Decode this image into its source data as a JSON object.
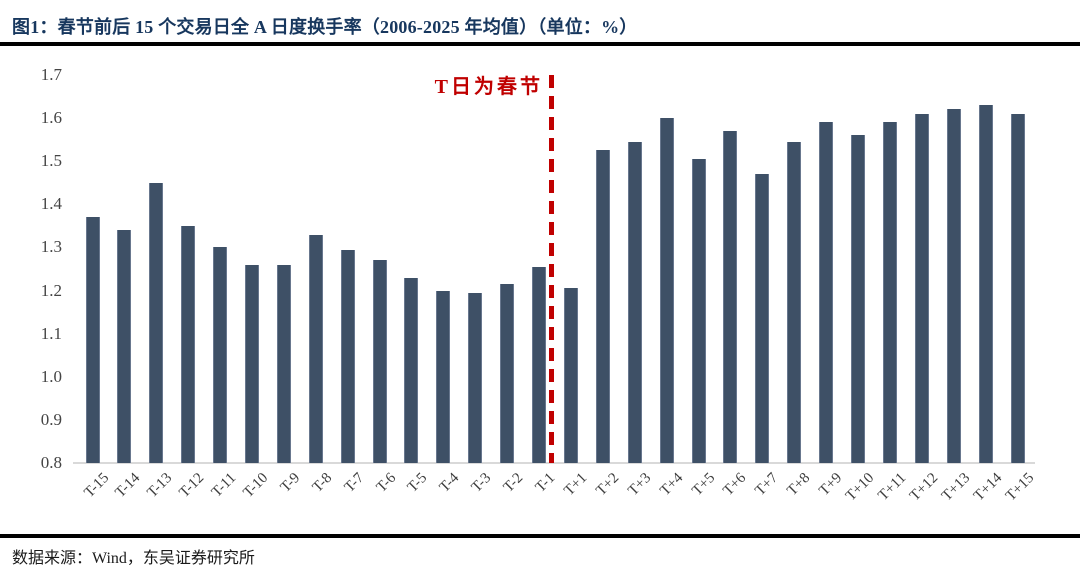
{
  "figure": {
    "title": "图1：春节前后 15 个交易日全 A 日度换手率（2006-2025 年均值）（单位：%）",
    "source": "数据来源：Wind，东吴证券研究所"
  },
  "colors": {
    "bar": "#3E5066",
    "title_navy": "#17375E",
    "annotation_red": "#C00000",
    "axis_line_gray": "#D9D9D9",
    "rule_black": "#000000"
  },
  "chart_data": {
    "type": "bar",
    "title": "春节前后15个交易日全A日度换手率（2006-2025年均值）",
    "unit": "%",
    "xlabel": "",
    "ylabel": "",
    "ylim": [
      0.8,
      1.7
    ],
    "ytick_step": 0.1,
    "yticks": [
      "1.7",
      "1.6",
      "1.5",
      "1.4",
      "1.3",
      "1.2",
      "1.1",
      "1.0",
      "0.9",
      "0.8"
    ],
    "grid": "off",
    "legend": "none",
    "annotation": "T日为春节",
    "annotation_line_between": [
      "T-1",
      "T+1"
    ],
    "categories": [
      "T-15",
      "T-14",
      "T-13",
      "T-12",
      "T-11",
      "T-10",
      "T-9",
      "T-8",
      "T-7",
      "T-6",
      "T-5",
      "T-4",
      "T-3",
      "T-2",
      "T-1",
      "T+1",
      "T+2",
      "T+3",
      "T+4",
      "T+5",
      "T+6",
      "T+7",
      "T+8",
      "T+9",
      "T+10",
      "T+11",
      "T+12",
      "T+13",
      "T+14",
      "T+15"
    ],
    "values": [
      1.37,
      1.34,
      1.45,
      1.35,
      1.3,
      1.26,
      1.26,
      1.33,
      1.295,
      1.27,
      1.23,
      1.2,
      1.195,
      1.215,
      1.255,
      1.205,
      1.525,
      1.545,
      1.6,
      1.505,
      1.57,
      1.47,
      1.545,
      1.59,
      1.56,
      1.59,
      1.61,
      1.62,
      1.63,
      1.61
    ]
  }
}
